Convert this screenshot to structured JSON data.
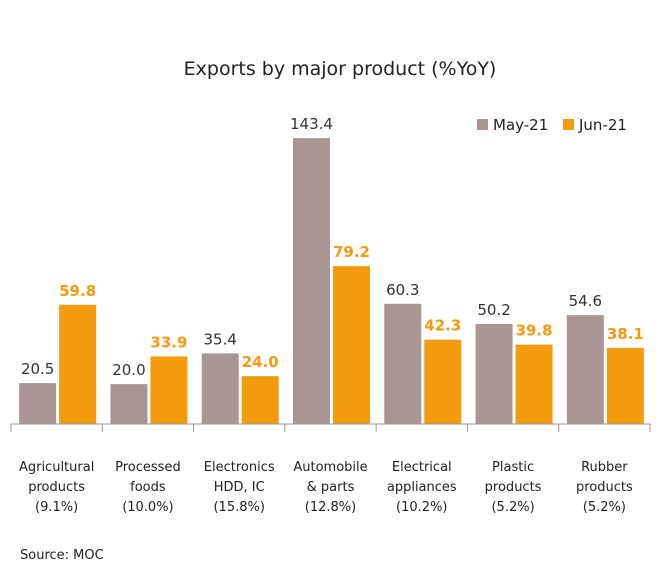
{
  "chart_data": {
    "type": "bar",
    "title": "Exports by major product (%YoY)",
    "categories": [
      [
        "Agricultural",
        "products",
        "(9.1%)"
      ],
      [
        "Processed",
        "foods",
        "(10.0%)"
      ],
      [
        "Electronics",
        "HDD, IC",
        "(15.8%)"
      ],
      [
        "Automobile",
        "& parts",
        "(12.8%)"
      ],
      [
        "Electrical",
        "appliances",
        "(10.2%)"
      ],
      [
        "Plastic",
        "products",
        "(5.2%)"
      ],
      [
        "Rubber",
        "products",
        "(5.2%)"
      ]
    ],
    "series": [
      {
        "name": "May-21",
        "color": "#a89594",
        "values": [
          20.5,
          20.0,
          35.4,
          143.4,
          60.3,
          50.2,
          54.6
        ]
      },
      {
        "name": "Jun-21",
        "color": "#f39b0c",
        "values": [
          59.8,
          33.9,
          24.0,
          79.2,
          42.3,
          39.8,
          38.1
        ]
      }
    ],
    "ylim": [
      0,
      155
    ],
    "legend": "top-right",
    "grid": false
  },
  "source": "Source: MOC"
}
